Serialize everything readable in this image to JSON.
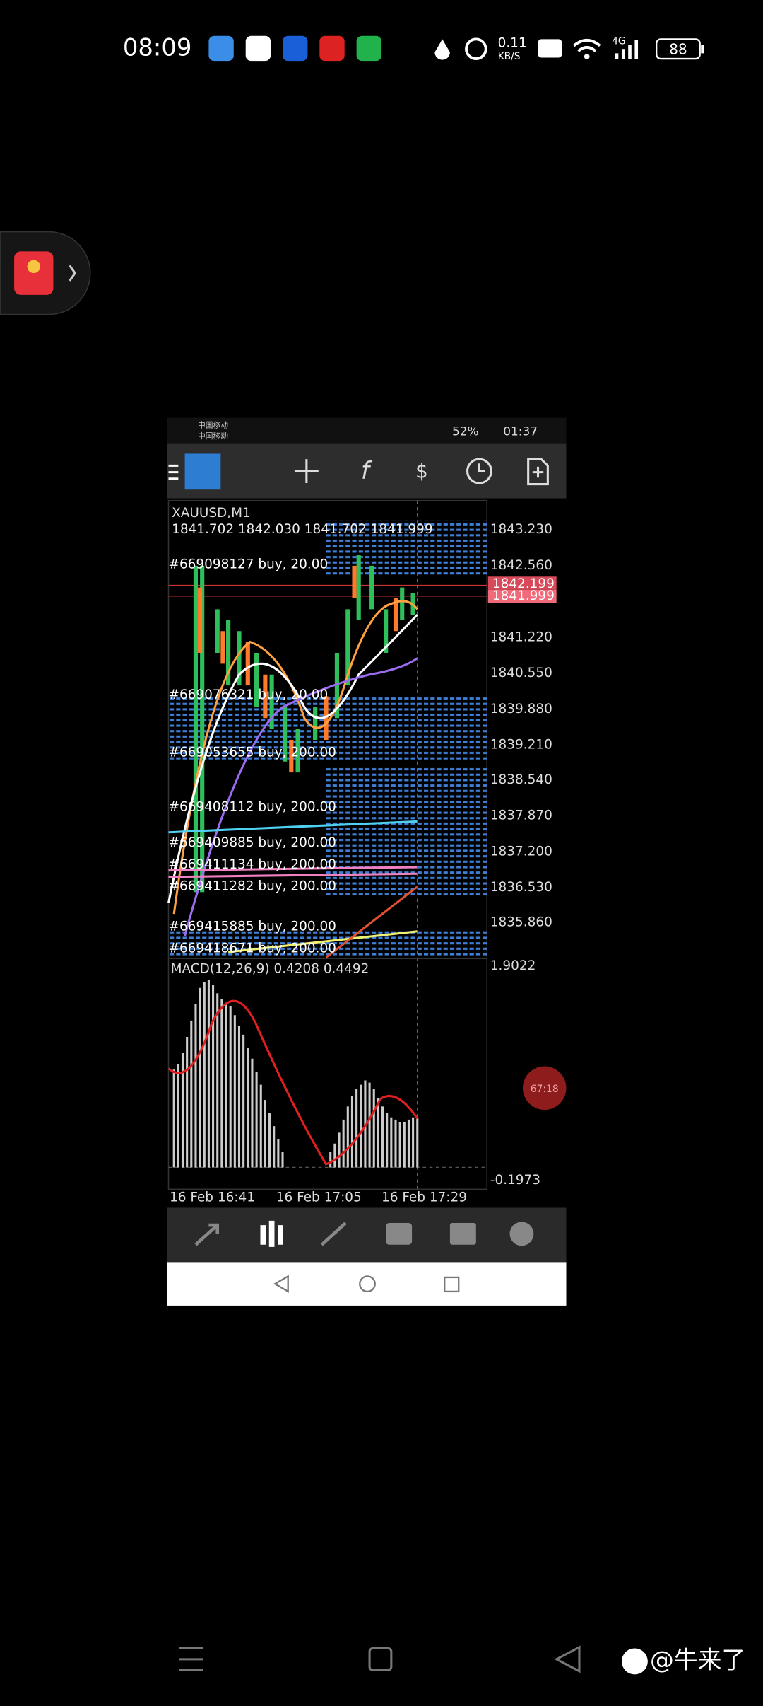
{
  "status_bar": {
    "time": "08:09",
    "net_speed": "0.11",
    "net_unit": "KB/S",
    "network": "4G",
    "battery": "88"
  },
  "inner_screen": {
    "status_bar": {
      "carrier_1": "中国移动",
      "carrier_2": "中国移动",
      "battery": "52%",
      "time": "01:37"
    },
    "chart": {
      "symbol": "XAUUSD,M1",
      "ohlc": "1841.702 1842.030 1841.702 1841.999",
      "price_labels": [
        "1843.230",
        "1842.560",
        "1841.220",
        "1840.550",
        "1839.880",
        "1839.210",
        "1838.540",
        "1837.870",
        "1837.200",
        "1836.530",
        "1835.860"
      ],
      "current_prices": [
        "1842.199",
        "1841.999"
      ],
      "orders": [
        "#669098127 buy, 20.00",
        "#669076321 buy, 20.00",
        "#669053655 buy, 200.00",
        "#669408112 buy, 200.00",
        "#669409885 buy, 200.00",
        "#669411134 buy, 200.00",
        "#669411282 buy, 200.00",
        "#669415885 buy, 200.00",
        "#669418671 buy, 200.00"
      ],
      "macd_label": "MACD(12,26,9) 0.4208 0.4492",
      "macd_scale": [
        "1.9022",
        "-0.1973"
      ],
      "time_labels": [
        "16 Feb 16:41",
        "16 Feb 17:05",
        "16 Feb 17:29"
      ]
    },
    "floating_timer": "67:18"
  },
  "watermark": "@牛来了"
}
